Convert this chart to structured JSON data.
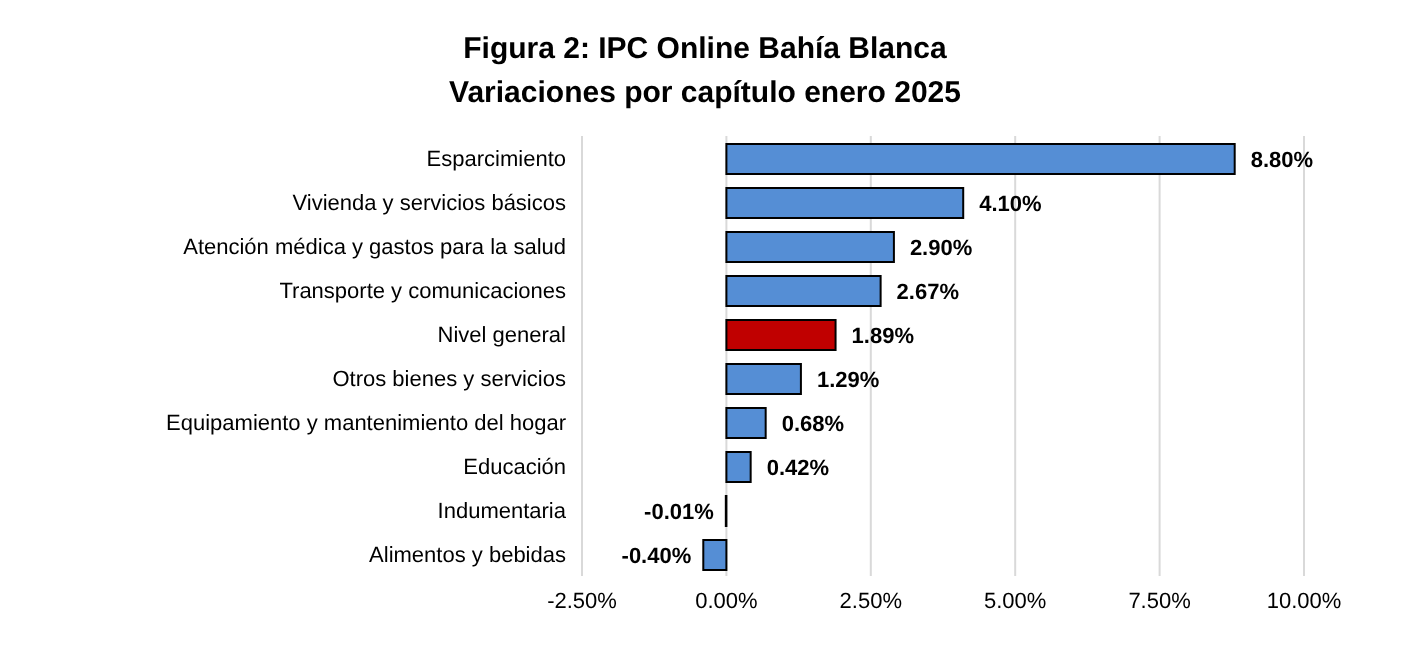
{
  "chart_data": {
    "type": "bar",
    "orientation": "horizontal",
    "title": "Figura 2: IPC Online Bahía Blanca",
    "subtitle": "Variaciones por capítulo enero 2025",
    "categories": [
      "Esparcimiento",
      "Vivienda y servicios básicos",
      "Atención médica y gastos para la salud",
      "Transporte y comunicaciones",
      "Nivel general",
      "Otros bienes y servicios",
      "Equipamiento y mantenimiento del hogar",
      "Educación",
      "Indumentaria",
      "Alimentos y bebidas"
    ],
    "values": [
      8.8,
      4.1,
      2.9,
      2.67,
      1.89,
      1.29,
      0.68,
      0.42,
      -0.01,
      -0.4
    ],
    "value_labels": [
      "8.80%",
      "4.10%",
      "2.90%",
      "2.67%",
      "1.89%",
      "1.29%",
      "0.68%",
      "0.42%",
      "-0.01%",
      "-0.40%"
    ],
    "colors": [
      "#558ed5",
      "#558ed5",
      "#558ed5",
      "#558ed5",
      "#c00000",
      "#558ed5",
      "#558ed5",
      "#558ed5",
      "#558ed5",
      "#558ed5"
    ],
    "xlim": [
      -2.5,
      10
    ],
    "xticks": [
      {
        "value": -2.5,
        "label": "-2.50%"
      },
      {
        "value": 0,
        "label": "0.00%"
      },
      {
        "value": 2.5,
        "label": "2.50%"
      },
      {
        "value": 5,
        "label": "5.00%"
      },
      {
        "value": 7.5,
        "label": "7.50%"
      },
      {
        "value": 10,
        "label": "10.00%"
      }
    ],
    "grid": "x"
  }
}
